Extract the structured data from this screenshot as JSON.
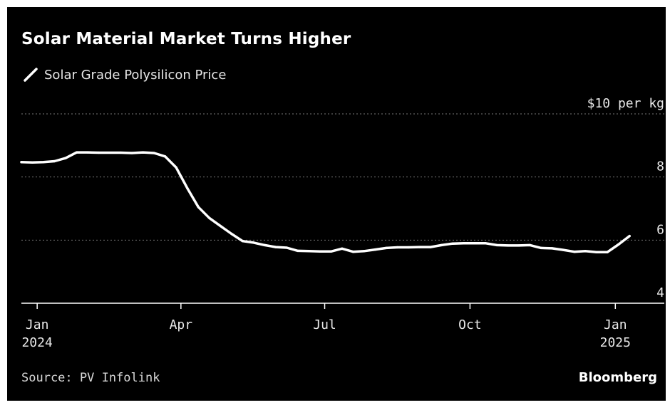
{
  "title": "Solar Material Market Turns Higher",
  "source": "Source: PV Infolink",
  "brand": "Bloomberg",
  "colors": {
    "background": "#000000",
    "line": "#ffffff",
    "grid": "#777777",
    "text": "#e8e8e8"
  },
  "chart_data": {
    "type": "line",
    "title": "Solar Material Market Turns Higher",
    "ylim": [
      4,
      10
    ],
    "yticks": [
      {
        "value": 10,
        "label": "$10 per kg"
      },
      {
        "value": 8,
        "label": "8"
      },
      {
        "value": 6,
        "label": "6"
      },
      {
        "value": 4,
        "label": "4"
      }
    ],
    "xticks": [
      {
        "date": "2024-01-01",
        "line1": "Jan",
        "line2": "2024"
      },
      {
        "date": "2024-04-01",
        "line1": "Apr",
        "line2": ""
      },
      {
        "date": "2024-07-01",
        "line1": "Jul",
        "line2": ""
      },
      {
        "date": "2024-10-01",
        "line1": "Oct",
        "line2": ""
      },
      {
        "date": "2025-01-01",
        "line1": "Jan",
        "line2": "2025"
      }
    ],
    "xlim": [
      "2023-12-22",
      "2025-02-01"
    ],
    "grid": "dotted horizontal",
    "legend_position": "top-left",
    "series": [
      {
        "name": "Solar Grade Polysilicon Price",
        "points": [
          [
            "2023-12-22",
            8.47
          ],
          [
            "2023-12-29",
            8.46
          ],
          [
            "2024-01-05",
            8.47
          ],
          [
            "2024-01-12",
            8.5
          ],
          [
            "2024-01-19",
            8.6
          ],
          [
            "2024-01-26",
            8.78
          ],
          [
            "2024-02-02",
            8.78
          ],
          [
            "2024-02-09",
            8.77
          ],
          [
            "2024-02-23",
            8.77
          ],
          [
            "2024-03-01",
            8.76
          ],
          [
            "2024-03-08",
            8.78
          ],
          [
            "2024-03-15",
            8.76
          ],
          [
            "2024-03-22",
            8.65
          ],
          [
            "2024-03-29",
            8.3
          ],
          [
            "2024-04-05",
            7.65
          ],
          [
            "2024-04-12",
            7.05
          ],
          [
            "2024-04-19",
            6.7
          ],
          [
            "2024-04-26",
            6.45
          ],
          [
            "2024-05-03",
            6.2
          ],
          [
            "2024-05-10",
            5.97
          ],
          [
            "2024-05-17",
            5.92
          ],
          [
            "2024-05-24",
            5.84
          ],
          [
            "2024-05-31",
            5.78
          ],
          [
            "2024-06-07",
            5.76
          ],
          [
            "2024-06-14",
            5.66
          ],
          [
            "2024-06-21",
            5.65
          ],
          [
            "2024-06-28",
            5.64
          ],
          [
            "2024-07-05",
            5.64
          ],
          [
            "2024-07-12",
            5.73
          ],
          [
            "2024-07-19",
            5.63
          ],
          [
            "2024-07-26",
            5.65
          ],
          [
            "2024-08-02",
            5.7
          ],
          [
            "2024-08-09",
            5.75
          ],
          [
            "2024-08-16",
            5.77
          ],
          [
            "2024-08-23",
            5.77
          ],
          [
            "2024-08-30",
            5.78
          ],
          [
            "2024-09-06",
            5.78
          ],
          [
            "2024-09-13",
            5.84
          ],
          [
            "2024-09-20",
            5.89
          ],
          [
            "2024-09-27",
            5.9
          ],
          [
            "2024-10-04",
            5.9
          ],
          [
            "2024-10-11",
            5.9
          ],
          [
            "2024-10-18",
            5.84
          ],
          [
            "2024-10-25",
            5.83
          ],
          [
            "2024-11-01",
            5.83
          ],
          [
            "2024-11-08",
            5.84
          ],
          [
            "2024-11-15",
            5.75
          ],
          [
            "2024-11-22",
            5.74
          ],
          [
            "2024-11-29",
            5.69
          ],
          [
            "2024-12-06",
            5.63
          ],
          [
            "2024-12-13",
            5.65
          ],
          [
            "2024-12-20",
            5.62
          ],
          [
            "2024-12-27",
            5.62
          ],
          [
            "2025-01-03",
            5.86
          ],
          [
            "2025-01-10",
            6.13
          ]
        ]
      }
    ]
  }
}
